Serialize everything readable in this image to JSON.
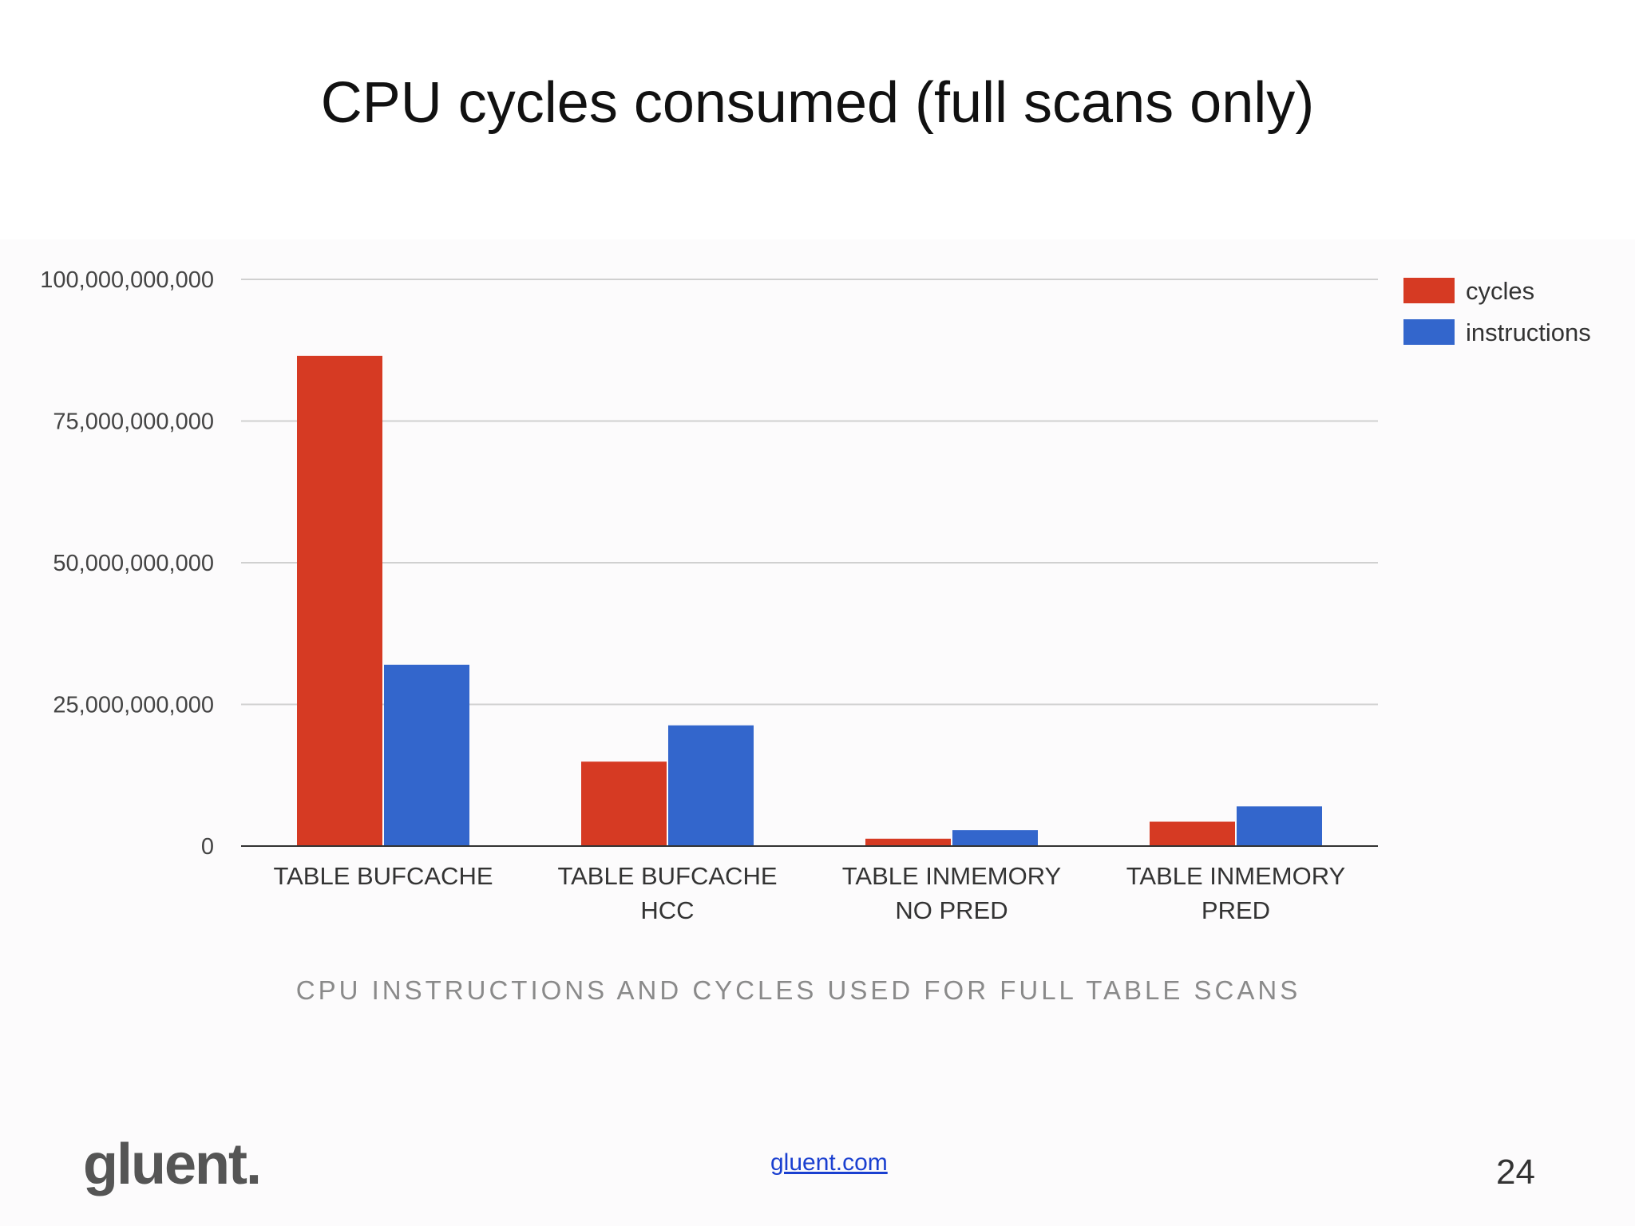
{
  "slide": {
    "title": "CPU cycles consumed (full scans only)",
    "caption": "CPU INSTRUCTIONS AND CYCLES USED FOR FULL TABLE SCANS",
    "logo_text": "gluent.",
    "footer_link": "gluent.com",
    "page_number": "24"
  },
  "chart_data": {
    "type": "bar",
    "categories": [
      [
        "TABLE BUFCACHE"
      ],
      [
        "TABLE BUFCACHE",
        "HCC"
      ],
      [
        "TABLE INMEMORY",
        "NO PRED"
      ],
      [
        "TABLE INMEMORY",
        "PRED"
      ]
    ],
    "series": [
      {
        "name": "cycles",
        "color": "#d63a23",
        "values": [
          86500000000,
          14900000000,
          1300000000,
          4300000000
        ]
      },
      {
        "name": "instructions",
        "color": "#3366cc",
        "values": [
          32000000000,
          21300000000,
          2800000000,
          7000000000
        ]
      }
    ],
    "ylim": [
      0,
      100000000000
    ],
    "yticks": [
      0,
      25000000000,
      50000000000,
      75000000000,
      100000000000
    ],
    "ytick_labels": [
      "0",
      "25,000,000,000",
      "50,000,000,000",
      "75,000,000,000",
      "100,000,000,000"
    ],
    "grid": true,
    "legend": "top-right",
    "xlabel": "",
    "ylabel": ""
  }
}
